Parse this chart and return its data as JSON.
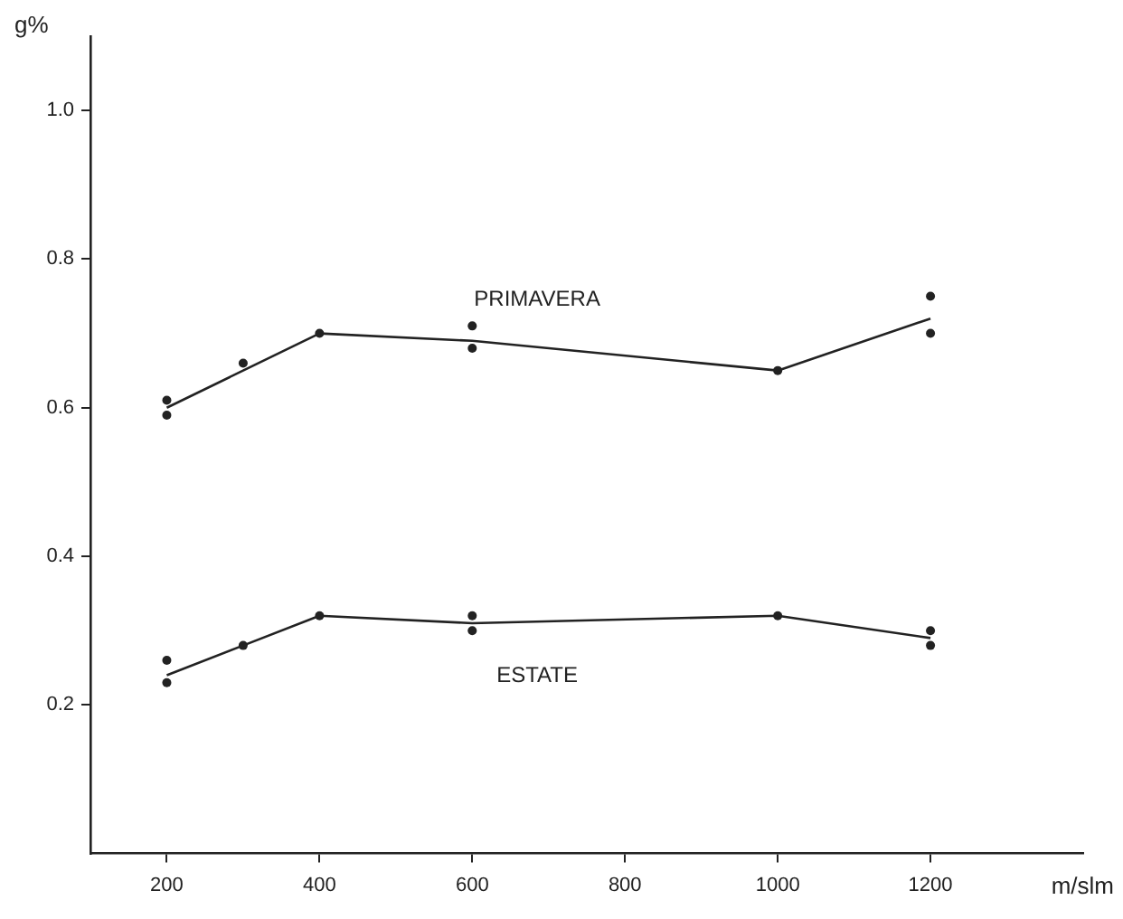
{
  "chart_data": {
    "type": "line",
    "xlabel": "m/slm",
    "ylabel": "g%",
    "xlim": [
      100,
      1400
    ],
    "xticks": [
      200,
      400,
      600,
      800,
      1000,
      1200
    ],
    "ylim": [
      0,
      1.1
    ],
    "yticks": [
      0.2,
      0.4,
      0.6,
      0.8,
      {
        "value": 1,
        "label": "1.0"
      }
    ],
    "grid": false,
    "legend": false,
    "marker": "none",
    "line_style": "solid",
    "series": [
      {
        "name": "PRIMAVERA",
        "color": "#222222",
        "x": [
          200,
          300,
          400,
          600,
          1000,
          1200
        ],
        "values": [
          0.6,
          0.65,
          0.7,
          0.69,
          0.65,
          0.72
        ]
      },
      {
        "name": "ESTATE",
        "color": "#222222",
        "x": [
          200,
          300,
          400,
          600,
          1000,
          1200
        ],
        "values": [
          0.24,
          0.28,
          0.32,
          0.31,
          0.32,
          0.29
        ]
      },
      {
        "type": "scatter",
        "marker": "circle",
        "color": "#222222",
        "x": [
          200,
          200,
          300,
          400,
          600,
          600,
          1000,
          1200,
          1200
        ],
        "values": [
          0.61,
          0.59,
          0.66,
          0.7,
          0.71,
          0.68,
          0.65,
          0.75,
          0.7
        ]
      },
      {
        "type": "scatter",
        "marker": "circle",
        "color": "#222222",
        "x": [
          200,
          200,
          300,
          400,
          600,
          600,
          1000,
          1200,
          1200
        ],
        "values": [
          0.26,
          0.23,
          0.28,
          0.32,
          0.32,
          0.3,
          0.32,
          0.3,
          0.28
        ]
      }
    ]
  }
}
